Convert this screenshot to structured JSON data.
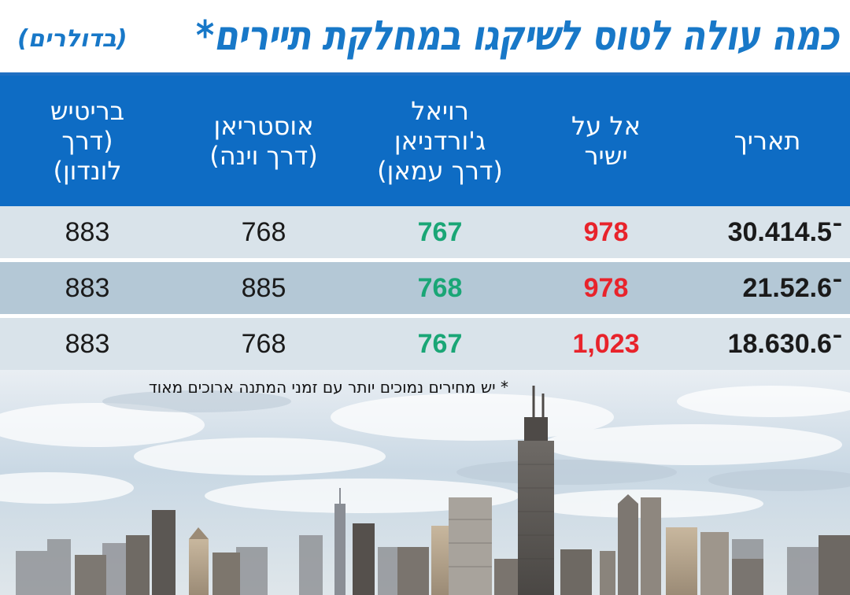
{
  "title": {
    "main": "כמה עולה לטוס לשיקגו במחלקת תיירים*",
    "unit": "(בדולרים)"
  },
  "table": {
    "headers": [
      "תאריך",
      "אל על\nישיר",
      "רויאל\nג'ורדניאן\n(דרך עמאן)",
      "אוסטריאן\n(דרך וינה)",
      "בריטיש\n(דרך\nלונדון)"
    ],
    "rows": [
      {
        "date": "30.4־14.5",
        "elal": "978",
        "royal": "767",
        "austrian": "768",
        "british": "883"
      },
      {
        "date": "21.5־2.6",
        "elal": "978",
        "royal": "768",
        "austrian": "885",
        "british": "883"
      },
      {
        "date": "18.6־30.6",
        "elal": "1,023",
        "royal": "767",
        "austrian": "768",
        "british": "883"
      }
    ]
  },
  "footnote": "* יש מחירים נמוכים יותר עם זמני המתנה ארוכים מאוד",
  "colors": {
    "header_blue": "#0e6cc4",
    "title_blue": "#1878c8",
    "price_red": "#e8232b",
    "price_green": "#1aa676",
    "row_light": "#d9e3ea",
    "row_dark": "#b4c8d6"
  },
  "image": {
    "subject": "chicago-skyline"
  }
}
